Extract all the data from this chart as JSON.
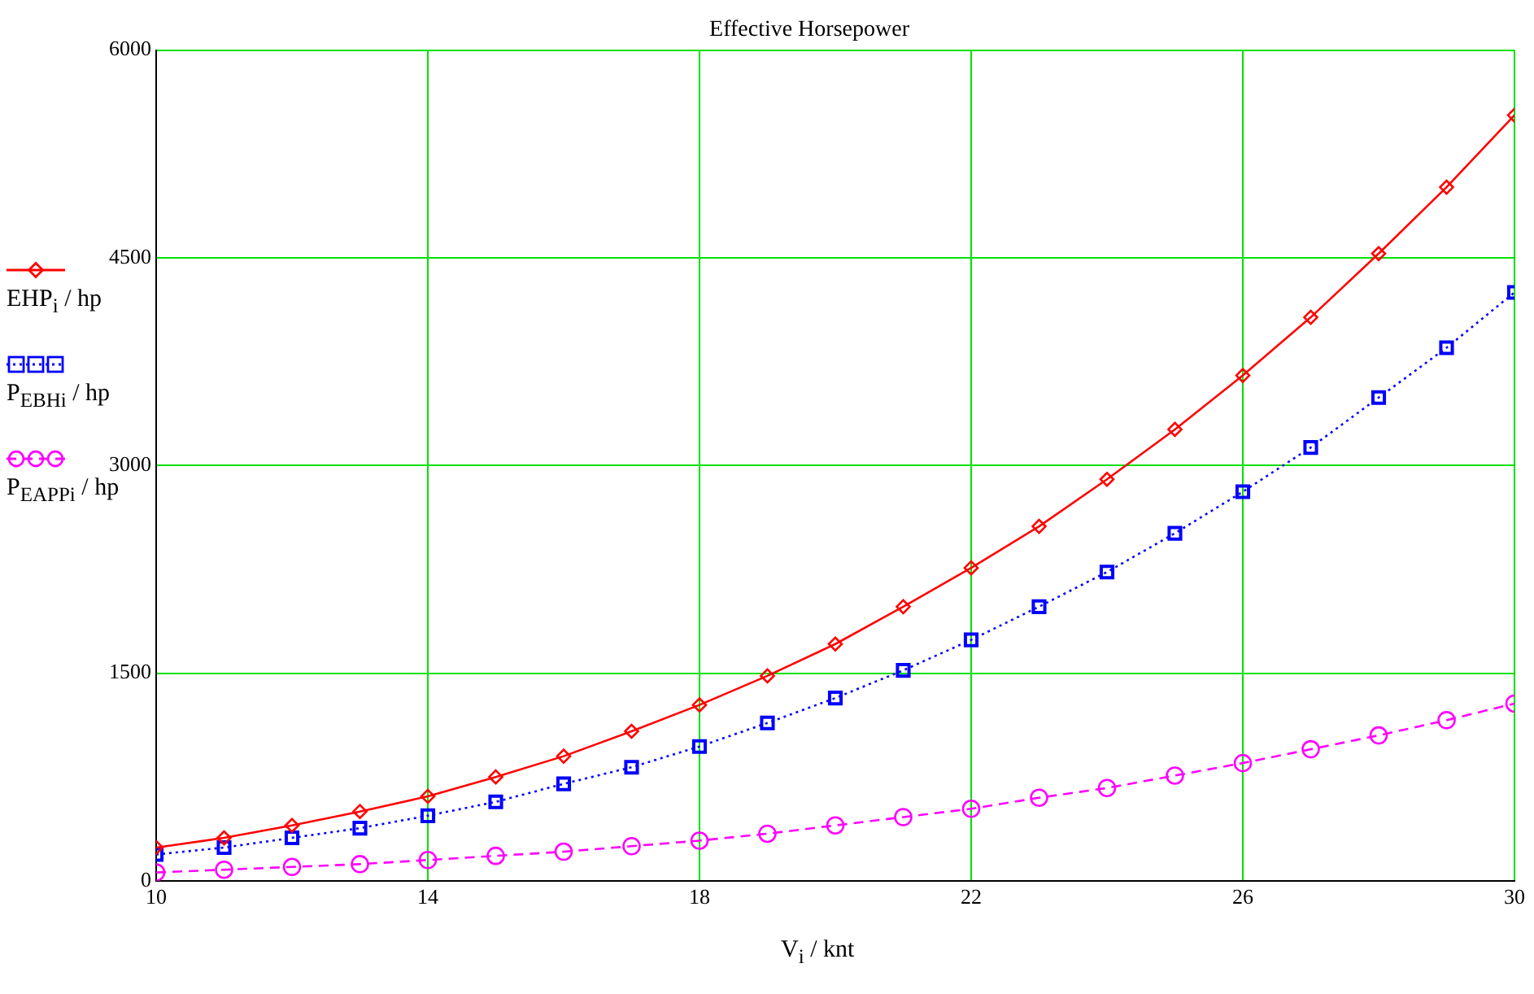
{
  "chart_data": {
    "type": "line",
    "title": "Effective Horsepower",
    "xlabel": "V$_{i}$ / knt",
    "x": [
      10,
      11,
      12,
      13,
      14,
      15,
      16,
      17,
      18,
      19,
      20,
      21,
      22,
      23,
      24,
      25,
      26,
      27,
      28,
      29,
      30
    ],
    "series": [
      {
        "name": "EHP$_{i}$ / hp",
        "color": "#ff0000",
        "marker": "diamond",
        "line_style": "solid",
        "values": [
          240,
          310,
          400,
          500,
          610,
          750,
          900,
          1080,
          1270,
          1480,
          1710,
          1980,
          2260,
          2560,
          2900,
          3260,
          3650,
          4070,
          4530,
          5010,
          5530
        ]
      },
      {
        "name": "P$_{EBH}$$_{i}$ / hp",
        "color": "#0000ff",
        "marker": "square",
        "line_style": "dotted",
        "values": [
          190,
          240,
          310,
          380,
          470,
          570,
          700,
          820,
          970,
          1140,
          1320,
          1520,
          1740,
          1980,
          2230,
          2510,
          2810,
          3130,
          3490,
          3850,
          4250
        ]
      },
      {
        "name": "P$_{EAPP}$$_{i}$ / hp",
        "color": "#ff00ff",
        "marker": "circle",
        "line_style": "dashed",
        "values": [
          60,
          80,
          100,
          120,
          150,
          180,
          210,
          250,
          290,
          340,
          400,
          460,
          520,
          600,
          670,
          760,
          850,
          950,
          1050,
          1160,
          1280
        ]
      }
    ],
    "xlim": [
      10,
      30
    ],
    "xticks": [
      10,
      14,
      18,
      22,
      26,
      30
    ],
    "ylim": [
      0,
      6000
    ],
    "yticks": [
      0,
      1500,
      3000,
      4500,
      6000
    ],
    "grid": true,
    "legend": "left"
  }
}
